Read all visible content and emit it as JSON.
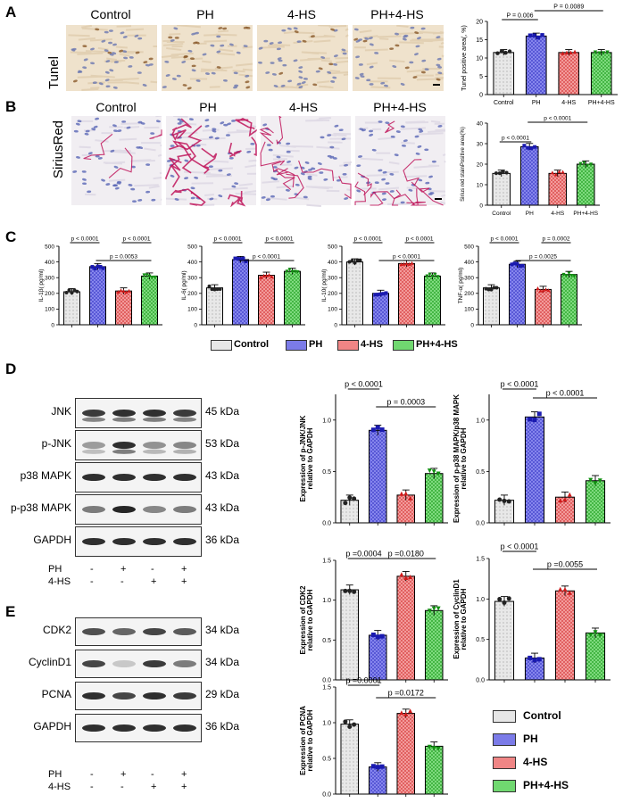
{
  "panel_letters": {
    "A": "A",
    "B": "B",
    "C": "C",
    "D": "D",
    "E": "E"
  },
  "groups": [
    "Control",
    "PH",
    "4-HS",
    "PH+4-HS"
  ],
  "colors": {
    "Control": "#d9d9d9",
    "PH": "#5b5bd6",
    "4-HS": "#e34a4a",
    "PH+4-HS": "#3fbf3f",
    "sirius": "#c0145a"
  },
  "panelA": {
    "row_label": "Tunel",
    "col_headers": [
      "Control",
      "PH",
      "4-HS",
      "PH+4-HS"
    ]
  },
  "panelB": {
    "row_label": "SiriusRed",
    "col_headers": [
      "Control",
      "PH",
      "4-HS",
      "PH+4-HS"
    ]
  },
  "legend_c": {
    "items": [
      "Control",
      "PH",
      "4-HS",
      "PH+4-HS"
    ]
  },
  "legend_e": {
    "items": [
      "Control",
      "PH",
      "4-HS",
      "PH+4-HS"
    ]
  },
  "westernD": {
    "proteins": [
      "JNK",
      "p-JNK",
      "p38 MAPK",
      "p-p38 MAPK",
      "GAPDH"
    ],
    "kda": [
      "45 kDa",
      "53 kDa",
      "43 kDa",
      "43 kDa",
      "36 kDa"
    ],
    "treat_labels": [
      "PH",
      "4-HS"
    ],
    "ph_signs": [
      "-",
      "+",
      "-",
      "+"
    ],
    "hs_signs": [
      "-",
      "-",
      "+",
      "+"
    ]
  },
  "westernE": {
    "proteins": [
      "CDK2",
      "CyclinD1",
      "PCNA",
      "GAPDH"
    ],
    "kda": [
      "34 kDa",
      "34 kDa",
      "29 kDa",
      "36 kDa"
    ],
    "treat_labels": [
      "PH",
      "4-HS"
    ],
    "ph_signs": [
      "-",
      "+",
      "-",
      "+"
    ],
    "hs_signs": [
      "-",
      "-",
      "+",
      "+"
    ]
  },
  "chart_data": [
    {
      "id": "tunel",
      "type": "bar",
      "categories": [
        "Control",
        "PH",
        "4-HS",
        "PH+4-HS"
      ],
      "values": [
        11.5,
        16,
        11.5,
        11.5
      ],
      "ylabel": "Tunel positive area(, %)",
      "ylim": [
        0,
        20
      ],
      "yticks": [
        0,
        5,
        10,
        15,
        20
      ],
      "comparisons": [
        {
          "a": 0,
          "b": 1,
          "label": "P = 0.006"
        },
        {
          "a": 1,
          "b": 3,
          "label": "P = 0.0089"
        }
      ]
    },
    {
      "id": "sirius",
      "type": "bar",
      "categories": [
        "Control",
        "PH",
        "4-HS",
        "PH+4-HS"
      ],
      "values": [
        15.5,
        28.5,
        15.5,
        20
      ],
      "ylabel": "Sirius red stainPositive area(%)",
      "ylim": [
        0,
        40
      ],
      "yticks": [
        0,
        10,
        20,
        30,
        40
      ],
      "comparisons": [
        {
          "a": 0,
          "b": 1,
          "label": "p < 0.0001"
        },
        {
          "a": 1,
          "b": 3,
          "label": "p < 0.0001"
        }
      ]
    },
    {
      "id": "il1b",
      "type": "bar",
      "categories": [
        "",
        "",
        "",
        ""
      ],
      "values": [
        210,
        370,
        215,
        310
      ],
      "ylabel": "IL-1β( pg/ml)",
      "ylim": [
        0,
        500
      ],
      "yticks": [
        0,
        100,
        200,
        300,
        400,
        500
      ],
      "comparisons": [
        {
          "a": 0,
          "b": 1,
          "label": "p < 0.0001"
        },
        {
          "a": 2,
          "b": 3,
          "label": "p < 0.0001"
        },
        {
          "a": 1,
          "b": 3,
          "label": "p = 0.0053"
        }
      ]
    },
    {
      "id": "il6",
      "type": "bar",
      "categories": [
        "",
        "",
        "",
        ""
      ],
      "values": [
        235,
        415,
        315,
        340
      ],
      "ylabel": "IL-6( pg/ml)",
      "ylim": [
        0,
        500
      ],
      "yticks": [
        0,
        100,
        200,
        300,
        400,
        500
      ],
      "comparisons": [
        {
          "a": 0,
          "b": 1,
          "label": "p < 0.0001"
        },
        {
          "a": 2,
          "b": 3,
          "label": "p < 0.0001"
        },
        {
          "a": 1,
          "b": 3,
          "label": "p < 0.0001"
        }
      ]
    },
    {
      "id": "il10",
      "type": "bar",
      "categories": [
        "",
        "",
        "",
        ""
      ],
      "values": [
        400,
        200,
        390,
        310
      ],
      "ylabel": "IL-10( pg/ml)",
      "ylim": [
        0,
        500
      ],
      "yticks": [
        0,
        100,
        200,
        300,
        400,
        500
      ],
      "comparisons": [
        {
          "a": 0,
          "b": 1,
          "label": "p < 0.0001"
        },
        {
          "a": 2,
          "b": 3,
          "label": "p < 0.0001"
        },
        {
          "a": 1,
          "b": 3,
          "label": "p < 0.0001"
        }
      ]
    },
    {
      "id": "tnfa",
      "type": "bar",
      "categories": [
        "",
        "",
        "",
        ""
      ],
      "values": [
        235,
        385,
        225,
        320
      ],
      "ylabel": "TNF-α( pg/ml)",
      "ylim": [
        0,
        500
      ],
      "yticks": [
        0,
        100,
        200,
        300,
        400,
        500
      ],
      "comparisons": [
        {
          "a": 0,
          "b": 1,
          "label": "p < 0.0001"
        },
        {
          "a": 2,
          "b": 3,
          "label": "p = 0.0002"
        },
        {
          "a": 1,
          "b": 3,
          "label": "p = 0.0025"
        }
      ]
    },
    {
      "id": "pjnk",
      "type": "bar",
      "categories": [
        "",
        "",
        "",
        ""
      ],
      "values": [
        0.22,
        0.9,
        0.27,
        0.48
      ],
      "ylabel": "Expression of p-JNK/JNK relative to GAPDH",
      "ylim": [
        0,
        1.25
      ],
      "yticks": [
        0,
        0.5,
        1.0
      ],
      "comparisons": [
        {
          "a": 0,
          "b": 1,
          "label": "p < 0.0001"
        },
        {
          "a": 1,
          "b": 3,
          "label": "p = 0.0003"
        }
      ]
    },
    {
      "id": "pp38",
      "type": "bar",
      "categories": [
        "",
        "",
        "",
        ""
      ],
      "values": [
        0.22,
        1.03,
        0.25,
        0.41
      ],
      "ylabel": "Expression of p-p38 MAPK/p38 MAPK relative to GAPDH",
      "ylim": [
        0,
        1.25
      ],
      "yticks": [
        0,
        0.5,
        1.0
      ],
      "comparisons": [
        {
          "a": 0,
          "b": 1,
          "label": "p < 0.0001"
        },
        {
          "a": 1,
          "b": 3,
          "label": "p < 0.0001"
        }
      ]
    },
    {
      "id": "cdk2",
      "type": "bar",
      "categories": [
        "",
        "",
        "",
        ""
      ],
      "values": [
        1.13,
        0.56,
        1.3,
        0.87
      ],
      "ylabel": "Expression of CDK2 relative to GAPDH",
      "ylim": [
        0,
        1.5
      ],
      "yticks": [
        0,
        0.5,
        1.0,
        1.5
      ],
      "comparisons": [
        {
          "a": 0,
          "b": 1,
          "label": "p =0.0004"
        },
        {
          "a": 1,
          "b": 3,
          "label": "p =0.0180"
        }
      ]
    },
    {
      "id": "cyclind1",
      "type": "bar",
      "categories": [
        "",
        "",
        "",
        ""
      ],
      "values": [
        0.97,
        0.27,
        1.1,
        0.58
      ],
      "ylabel": "Expression of CyclinD1 relative to GAPDH",
      "ylim": [
        0,
        1.5
      ],
      "yticks": [
        0,
        0.5,
        1.0,
        1.5
      ],
      "comparisons": [
        {
          "a": 0,
          "b": 1,
          "label": "p < 0.0001"
        },
        {
          "a": 1,
          "b": 3,
          "label": "p =0.0055"
        }
      ]
    },
    {
      "id": "pcna",
      "type": "bar",
      "categories": [
        "",
        "",
        "",
        ""
      ],
      "values": [
        0.98,
        0.38,
        1.13,
        0.67
      ],
      "ylabel": "Expression of PCNA relative to GAPDH",
      "ylim": [
        0,
        1.5
      ],
      "yticks": [
        0,
        0.5,
        1.0,
        1.5
      ],
      "comparisons": [
        {
          "a": 0,
          "b": 1,
          "label": "p =0.0001"
        },
        {
          "a": 1,
          "b": 3,
          "label": "p =0.0172"
        }
      ]
    }
  ]
}
